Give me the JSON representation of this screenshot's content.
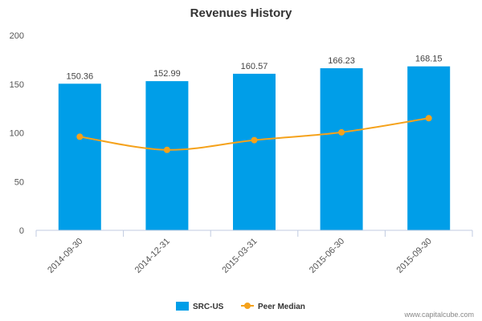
{
  "chart_data": {
    "type": "bar",
    "title": "Revenues History",
    "categories": [
      "2014-09-30",
      "2014-12-31",
      "2015-03-31",
      "2015-06-30",
      "2015-09-30"
    ],
    "series": [
      {
        "name": "SRC-US",
        "kind": "bar",
        "color": "#009ee8",
        "values": [
          150.36,
          152.99,
          160.57,
          166.23,
          168.15
        ],
        "labels": [
          "150.36",
          "152.99",
          "160.57",
          "166.23",
          "168.15"
        ]
      },
      {
        "name": "Peer Median",
        "kind": "line",
        "color": "#f5a21b",
        "values": [
          96,
          82.5,
          92.5,
          100.5,
          115
        ]
      }
    ],
    "yticks": [
      "0",
      "50",
      "100",
      "150",
      "200"
    ],
    "ylim": [
      0,
      200
    ],
    "grid": false,
    "legend": "bottom-center"
  },
  "credit": "www.capitalcube.com"
}
